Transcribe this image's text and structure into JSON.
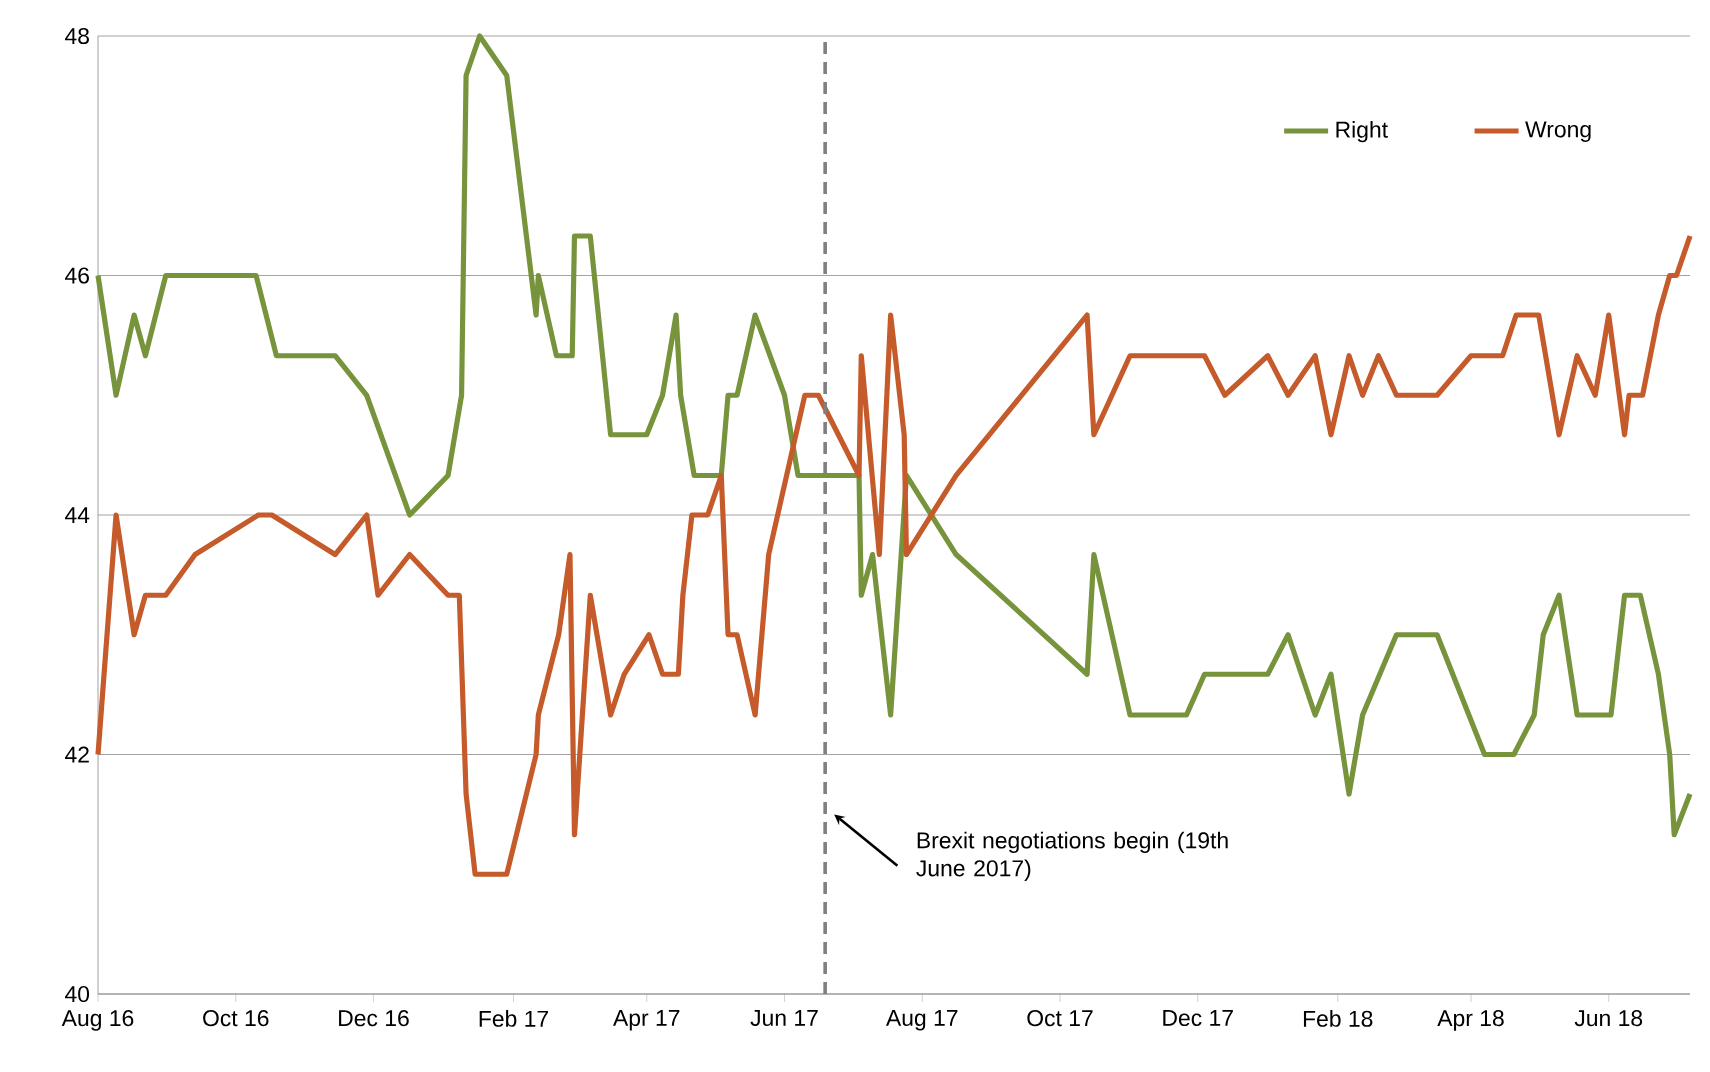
{
  "chart_data": {
    "type": "line",
    "xlim": [
      "2016-08-01",
      "2018-07-07"
    ],
    "xticks": [
      {
        "value": "2016-08-01",
        "label": "Aug 16"
      },
      {
        "value": "2016-10-01",
        "label": "Oct 16"
      },
      {
        "value": "2016-12-01",
        "label": "Dec 16"
      },
      {
        "value": "2017-02-01",
        "label": "Feb 17"
      },
      {
        "value": "2017-04-01",
        "label": "Apr 17"
      },
      {
        "value": "2017-06-01",
        "label": "Jun 17"
      },
      {
        "value": "2017-08-01",
        "label": "Aug 17"
      },
      {
        "value": "2017-10-01",
        "label": "Oct 17"
      },
      {
        "value": "2017-12-01",
        "label": "Dec 17"
      },
      {
        "value": "2018-02-01",
        "label": "Feb 18"
      },
      {
        "value": "2018-04-01",
        "label": "Apr 18"
      },
      {
        "value": "2018-06-01",
        "label": "Jun 18"
      }
    ],
    "ylim": [
      40,
      48
    ],
    "yticks": [
      40,
      42,
      44,
      46,
      48
    ],
    "grid": "y",
    "legend": "top right",
    "marker": "none",
    "line_style": "solid",
    "series": [
      {
        "name": "Right",
        "color": "#77933c",
        "x": [
          "2016-08-01",
          "2016-08-09",
          "2016-08-17",
          "2016-08-22",
          "2016-08-31",
          "2016-10-10",
          "2016-10-19",
          "2016-11-14",
          "2016-11-28",
          "2016-12-17",
          "2017-01-03",
          "2017-01-09",
          "2017-01-11",
          "2017-01-17",
          "2017-01-29",
          "2017-02-11",
          "2017-02-12",
          "2017-02-20",
          "2017-02-27",
          "2017-02-28",
          "2017-03-07",
          "2017-03-16",
          "2017-04-01",
          "2017-04-08",
          "2017-04-14",
          "2017-04-16",
          "2017-04-22",
          "2017-05-04",
          "2017-05-07",
          "2017-05-11",
          "2017-05-19",
          "2017-06-01",
          "2017-06-07",
          "2017-07-04",
          "2017-07-05",
          "2017-07-10",
          "2017-07-18",
          "2017-07-25",
          "2017-08-16",
          "2017-10-13",
          "2017-10-16",
          "2017-11-01",
          "2017-11-26",
          "2017-12-04",
          "2018-01-01",
          "2018-01-10",
          "2018-01-22",
          "2018-01-29",
          "2018-02-06",
          "2018-02-12",
          "2018-02-27",
          "2018-03-17",
          "2018-04-07",
          "2018-04-20",
          "2018-04-29",
          "2018-05-03",
          "2018-05-10",
          "2018-05-18",
          "2018-06-02",
          "2018-06-08",
          "2018-06-15",
          "2018-06-23",
          "2018-06-28",
          "2018-06-30",
          "2018-07-07"
        ],
        "values": [
          46,
          45,
          45.67,
          45.33,
          46,
          46,
          45.33,
          45.33,
          45,
          44,
          44.33,
          45,
          47.67,
          48,
          47.67,
          45.67,
          46,
          45.33,
          45.33,
          46.33,
          46.33,
          44.67,
          44.67,
          45,
          45.67,
          45,
          44.33,
          44.33,
          45,
          45,
          45.67,
          45,
          44.33,
          44.33,
          43.33,
          43.67,
          42.33,
          44.33,
          43.67,
          42.67,
          43.67,
          42.33,
          42.33,
          42.67,
          42.67,
          43,
          42.33,
          42.67,
          41.67,
          42.33,
          43,
          43,
          42,
          42,
          42.33,
          43,
          43.33,
          42.33,
          42.33,
          43.33,
          43.33,
          42.67,
          42,
          41.33,
          41.67
        ]
      },
      {
        "name": "Wrong",
        "color": "#c55a2a",
        "x": [
          "2016-08-01",
          "2016-08-09",
          "2016-08-17",
          "2016-08-22",
          "2016-08-31",
          "2016-09-13",
          "2016-10-11",
          "2016-10-17",
          "2016-11-14",
          "2016-11-28",
          "2016-12-03",
          "2016-12-17",
          "2017-01-03",
          "2017-01-08",
          "2017-01-11",
          "2017-01-15",
          "2017-01-29",
          "2017-02-11",
          "2017-02-12",
          "2017-02-21",
          "2017-02-26",
          "2017-02-28",
          "2017-03-07",
          "2017-03-16",
          "2017-03-22",
          "2017-04-02",
          "2017-04-08",
          "2017-04-15",
          "2017-04-17",
          "2017-04-21",
          "2017-04-28",
          "2017-05-04",
          "2017-05-07",
          "2017-05-11",
          "2017-05-19",
          "2017-05-25",
          "2017-06-10",
          "2017-06-16",
          "2017-07-04",
          "2017-07-05",
          "2017-07-13",
          "2017-07-18",
          "2017-07-24",
          "2017-07-25",
          "2017-08-16",
          "2017-10-13",
          "2017-10-16",
          "2017-11-01",
          "2017-12-04",
          "2017-12-13",
          "2018-01-01",
          "2018-01-10",
          "2018-01-22",
          "2018-01-29",
          "2018-02-06",
          "2018-02-12",
          "2018-02-19",
          "2018-02-27",
          "2018-03-17",
          "2018-04-01",
          "2018-04-15",
          "2018-04-21",
          "2018-05-01",
          "2018-05-10",
          "2018-05-18",
          "2018-05-26",
          "2018-06-01",
          "2018-06-08",
          "2018-06-10",
          "2018-06-16",
          "2018-06-23",
          "2018-06-28",
          "2018-07-01",
          "2018-07-07"
        ],
        "values": [
          42,
          44,
          43,
          43.33,
          43.33,
          43.67,
          44,
          44,
          43.67,
          44,
          43.33,
          43.67,
          43.33,
          43.33,
          41.67,
          41,
          41,
          42,
          42.33,
          43,
          43.67,
          41.33,
          43.33,
          42.33,
          42.67,
          43,
          42.67,
          42.67,
          43.33,
          44,
          44,
          44.33,
          43,
          43,
          42.33,
          43.67,
          45,
          45,
          44.33,
          45.33,
          43.67,
          45.67,
          44.67,
          43.67,
          44.33,
          45.67,
          44.67,
          45.33,
          45.33,
          45,
          45.33,
          45,
          45.33,
          44.67,
          45.33,
          45,
          45.33,
          45,
          45,
          45.33,
          45.33,
          45.67,
          45.67,
          44.67,
          45.33,
          45,
          45.67,
          44.67,
          45,
          45,
          45.67,
          46,
          46,
          46.33
        ]
      }
    ],
    "ref_lines": [
      {
        "axis": "x",
        "value": "2017-06-19",
        "label": "Brexit negotiations begin (19th June 2017)",
        "color": "#7f7f7f",
        "line_style": "dashed"
      }
    ]
  }
}
